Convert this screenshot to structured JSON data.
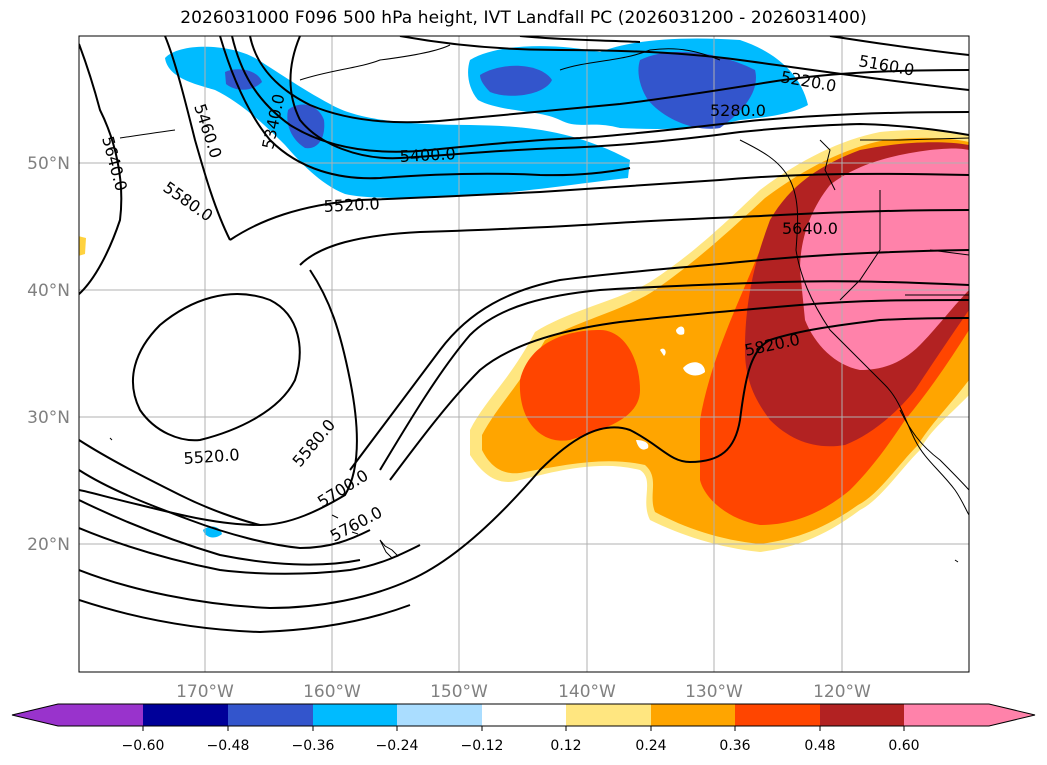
{
  "title": "2026031000 F096 500 hPa height, IVT Landfall PC (2026031200 - 2026031400)",
  "map": {
    "lon_labels": [
      "170°W",
      "160°W",
      "150°W",
      "140°W",
      "130°W",
      "120°W"
    ],
    "lat_labels": [
      "50°N",
      "40°N",
      "30°N",
      "20°N"
    ]
  },
  "contour_labels": [
    "5640.0",
    "5460.0",
    "5340.0",
    "5580.0",
    "5400.0",
    "5520.0",
    "5220.0",
    "5160.0",
    "5280.0",
    "5640.0",
    "5820.0",
    "5520.0",
    "5580.0",
    "5700.0",
    "5760.0"
  ],
  "colorbar": {
    "ticks": [
      "−0.60",
      "−0.48",
      "−0.36",
      "−0.24",
      "−0.12",
      "0.12",
      "0.24",
      "0.36",
      "0.48",
      "0.60"
    ],
    "colors": [
      "#9933cc",
      "#000099",
      "#3355cc",
      "#00bbff",
      "#aaddff",
      "#ffffff",
      "#ffe680",
      "#ffa500",
      "#ff4500",
      "#b22222",
      "#ff82aa",
      "#ff82aa"
    ]
  }
}
